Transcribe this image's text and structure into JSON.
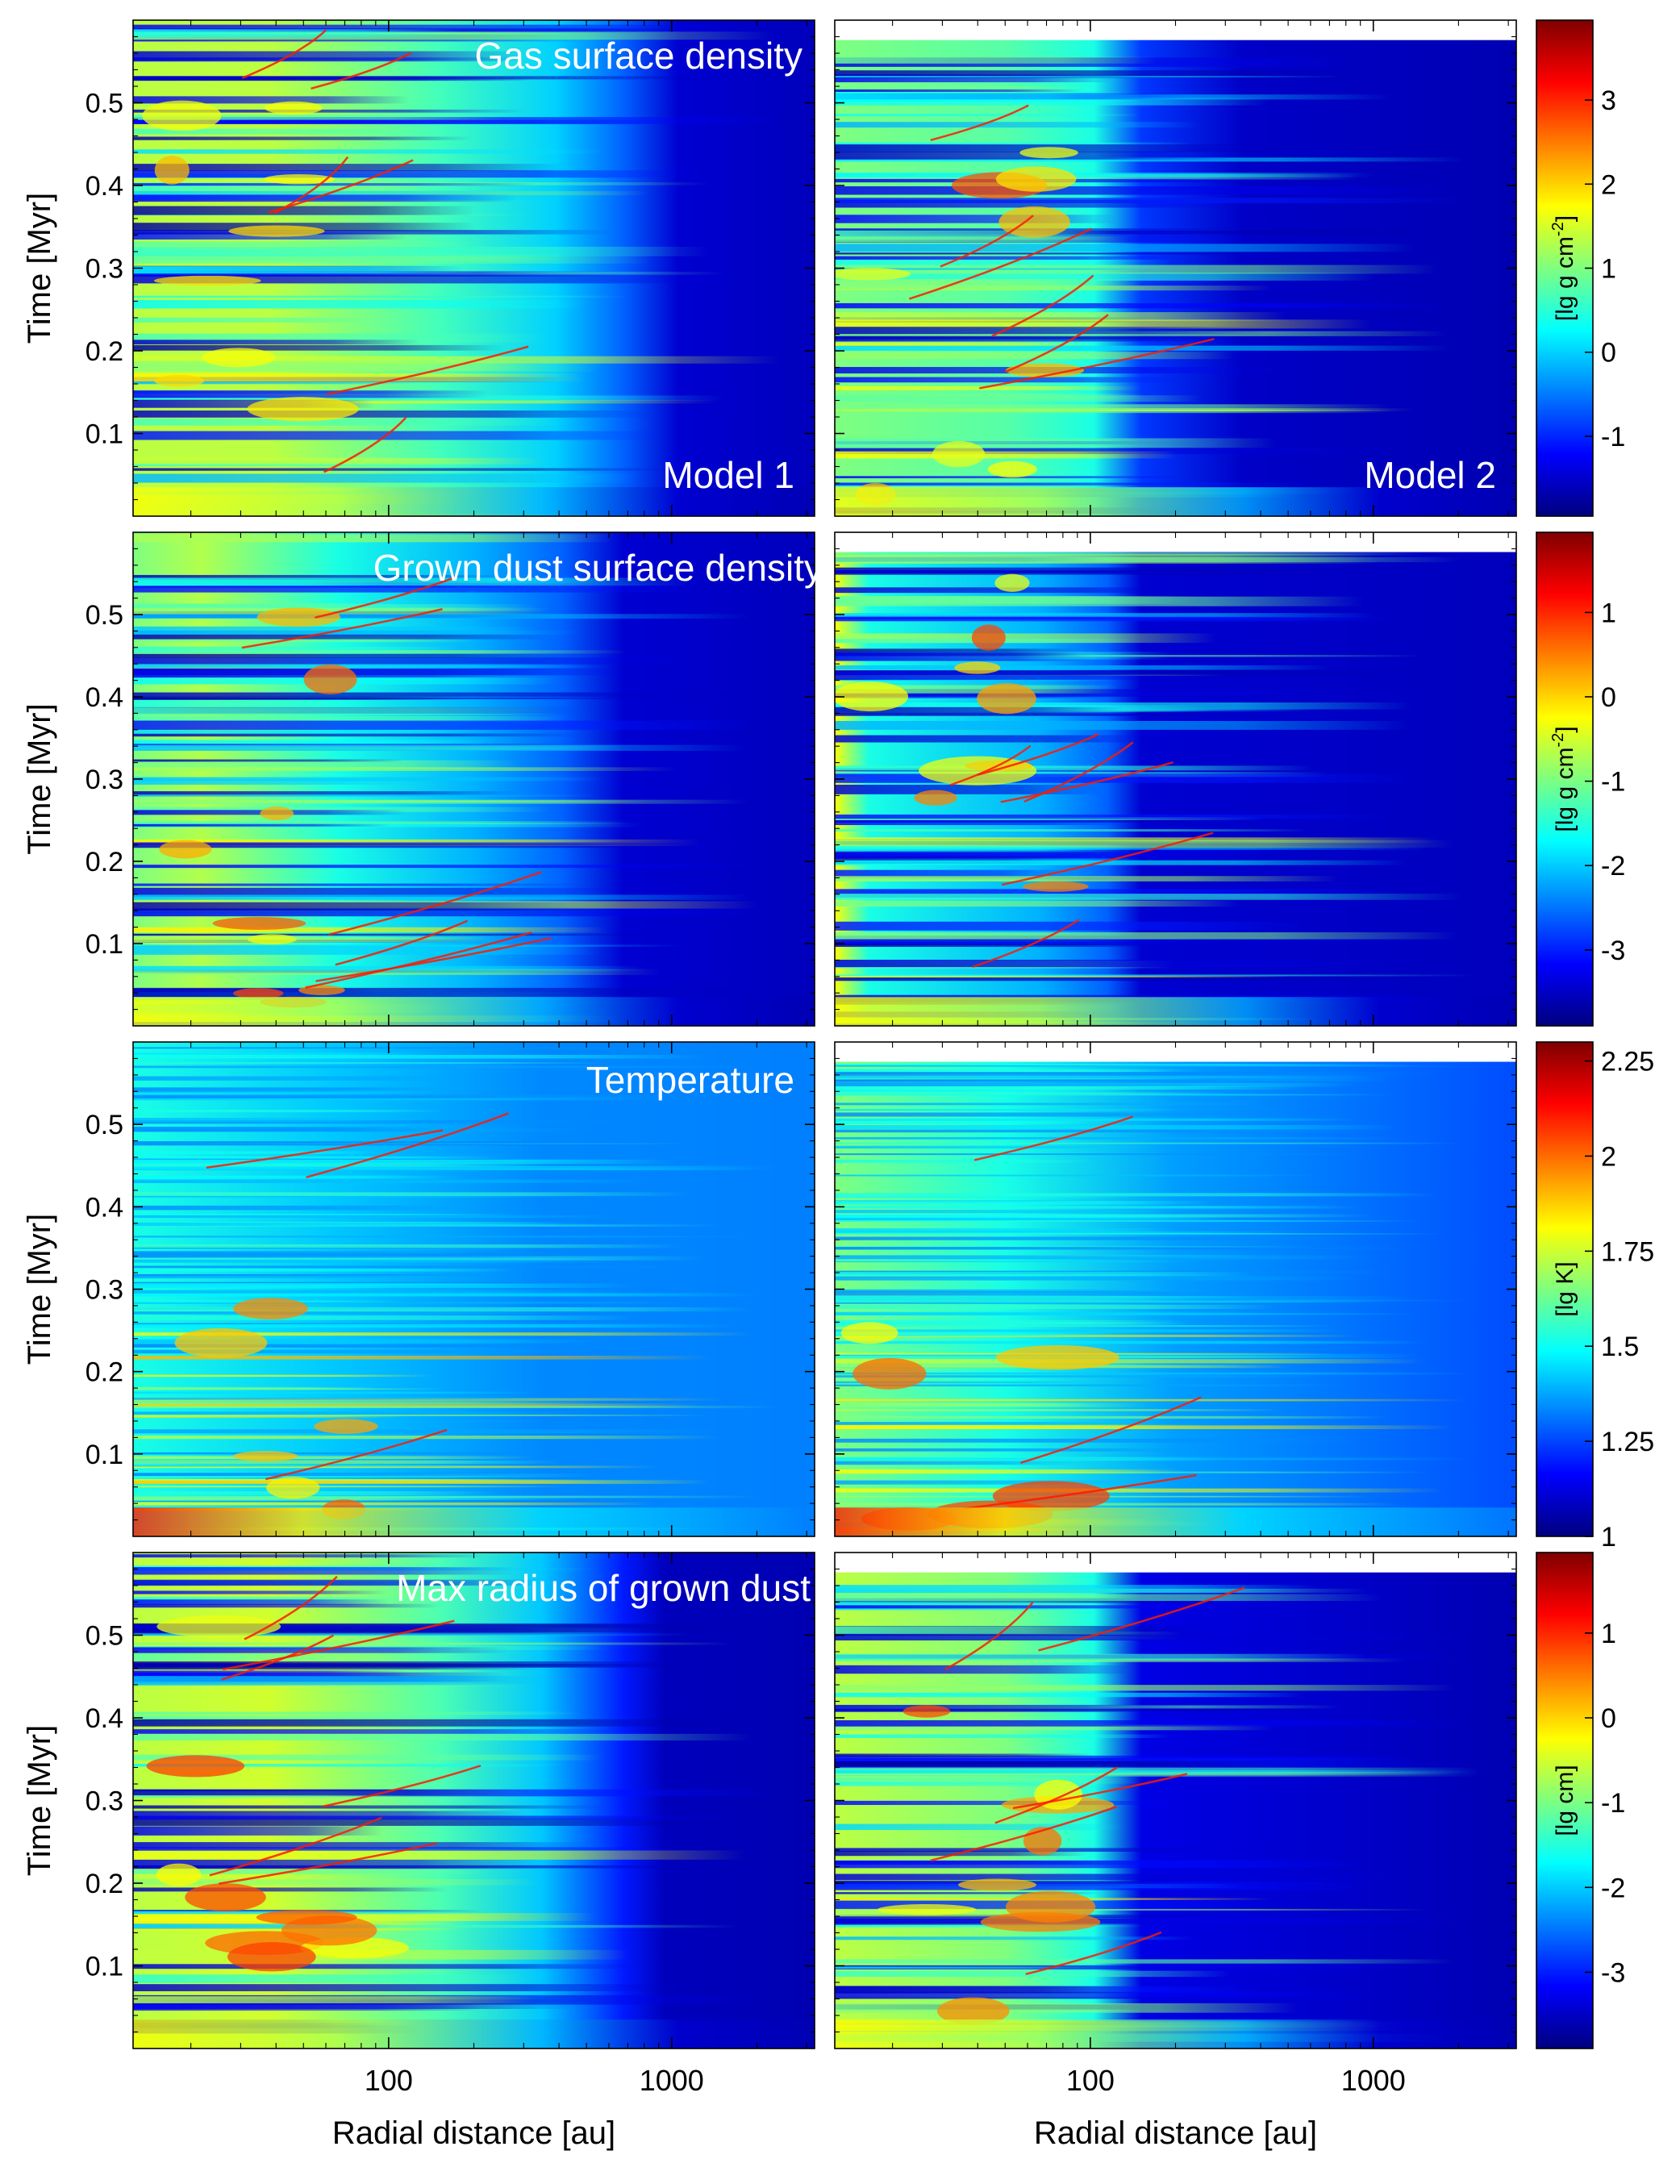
{
  "chart_data": {
    "type": "heatmap",
    "x_axis": {
      "label": "Radial distance [au]",
      "scale": "log",
      "range": [
        12.5,
        3200
      ],
      "ticks": [
        {
          "value": 100,
          "label": "100"
        },
        {
          "value": 1000,
          "label": "1000"
        }
      ]
    },
    "y_axis": {
      "label": "Time [Myr]",
      "range": [
        0.0,
        0.6
      ],
      "ticks": [
        {
          "value": 0.1,
          "label": "0.1"
        },
        {
          "value": 0.2,
          "label": "0.2"
        },
        {
          "value": 0.3,
          "label": "0.3"
        },
        {
          "value": 0.4,
          "label": "0.4"
        },
        {
          "value": 0.5,
          "label": "0.5"
        }
      ]
    },
    "columns": [
      {
        "model": "Model 1",
        "t_end": 0.6
      },
      {
        "model": "Model 2",
        "t_end": 0.576
      }
    ],
    "rows": [
      {
        "title": "Gas surface density",
        "colorbar": {
          "label_main": "[lg g cm",
          "label_sup": "-2",
          "label_close": "]",
          "range": [
            -1.95,
            3.95
          ],
          "ticks": [
            {
              "value": -1,
              "label": "-1"
            },
            {
              "value": 0,
              "label": "0"
            },
            {
              "value": 1,
              "label": "1"
            },
            {
              "value": 2,
              "label": "2"
            },
            {
              "value": 3,
              "label": "3"
            }
          ]
        }
      },
      {
        "title": "Grown dust surface density",
        "colorbar": {
          "label_main": "[lg g cm",
          "label_sup": "-2",
          "label_close": "]",
          "range": [
            -3.9,
            1.95
          ],
          "ticks": [
            {
              "value": -3,
              "label": "-3"
            },
            {
              "value": -2,
              "label": "-2"
            },
            {
              "value": -1,
              "label": "-1"
            },
            {
              "value": 0,
              "label": "0"
            },
            {
              "value": 1,
              "label": "1"
            }
          ]
        }
      },
      {
        "title": "Temperature",
        "colorbar": {
          "label_main": "[lg K]",
          "label_sup": "",
          "label_close": "",
          "range": [
            1.0,
            2.3
          ],
          "ticks": [
            {
              "value": 1,
              "label": "1"
            },
            {
              "value": 1.25,
              "label": "1.25"
            },
            {
              "value": 1.5,
              "label": "1.5"
            },
            {
              "value": 1.75,
              "label": "1.75"
            },
            {
              "value": 2,
              "label": "2"
            },
            {
              "value": 2.25,
              "label": "2.25"
            }
          ]
        }
      },
      {
        "title": "Max radius of grown dust",
        "colorbar": {
          "label_main": "[lg cm]",
          "label_sup": "",
          "label_close": "",
          "range": [
            -3.9,
            1.95
          ],
          "ticks": [
            {
              "value": -3,
              "label": "-3"
            },
            {
              "value": -2,
              "label": "-2"
            },
            {
              "value": -1,
              "label": "-1"
            },
            {
              "value": 0,
              "label": "0"
            },
            {
              "value": 1,
              "label": "1"
            }
          ]
        }
      }
    ],
    "colormap": "jet",
    "colormap_stops": [
      "#00007f",
      "#0000ff",
      "#007fff",
      "#00ffff",
      "#7fff7f",
      "#ffff00",
      "#ff7f00",
      "#ff0000",
      "#7f0000"
    ]
  }
}
